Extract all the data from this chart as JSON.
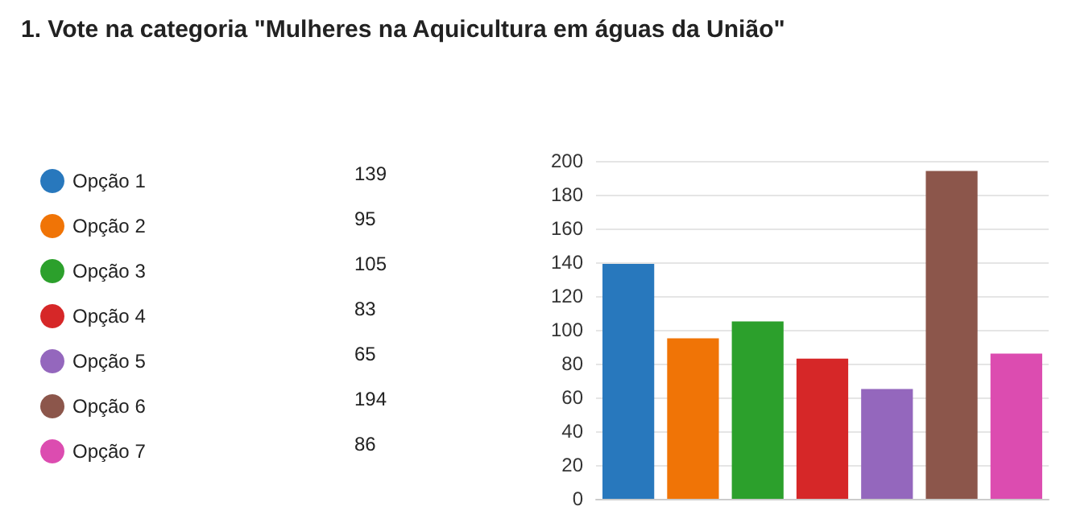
{
  "chart_data": {
    "type": "bar",
    "title": "1. Vote na categoria \"Mulheres na Aquicultura em águas da União\"",
    "categories": [
      null,
      null,
      null,
      null,
      null,
      null,
      null
    ],
    "series": [
      {
        "name": "Opção 1",
        "color": "#2878bd",
        "values": [
          139,
          null,
          null,
          null,
          null,
          null,
          null
        ]
      },
      {
        "name": "Opção 2",
        "color": "#f07406",
        "values": [
          null,
          95,
          null,
          null,
          null,
          null,
          null
        ]
      },
      {
        "name": "Opção 3",
        "color": "#2ca02c",
        "values": [
          null,
          null,
          105,
          null,
          null,
          null,
          null
        ]
      },
      {
        "name": "Opção 4",
        "color": "#d62728",
        "values": [
          null,
          null,
          null,
          83,
          null,
          null,
          null
        ]
      },
      {
        "name": "Opção 5",
        "color": "#9467bd",
        "values": [
          null,
          null,
          null,
          null,
          65,
          null,
          null
        ]
      },
      {
        "name": "Opção 6",
        "color": "#8c564b",
        "values": [
          null,
          null,
          null,
          null,
          null,
          194,
          null
        ]
      },
      {
        "name": "Opção 7",
        "color": "#dc4cb0",
        "values": [
          null,
          null,
          null,
          null,
          null,
          null,
          86
        ]
      }
    ],
    "annotations": [
      "139",
      "95",
      "105",
      "83",
      "65",
      "194",
      "86"
    ],
    "ylim": [
      0,
      200
    ],
    "yticks": [
      0,
      20,
      40,
      60,
      80,
      100,
      120,
      140,
      160,
      180,
      200
    ],
    "grid": "y",
    "legend": "left",
    "tick_labels": "y"
  }
}
